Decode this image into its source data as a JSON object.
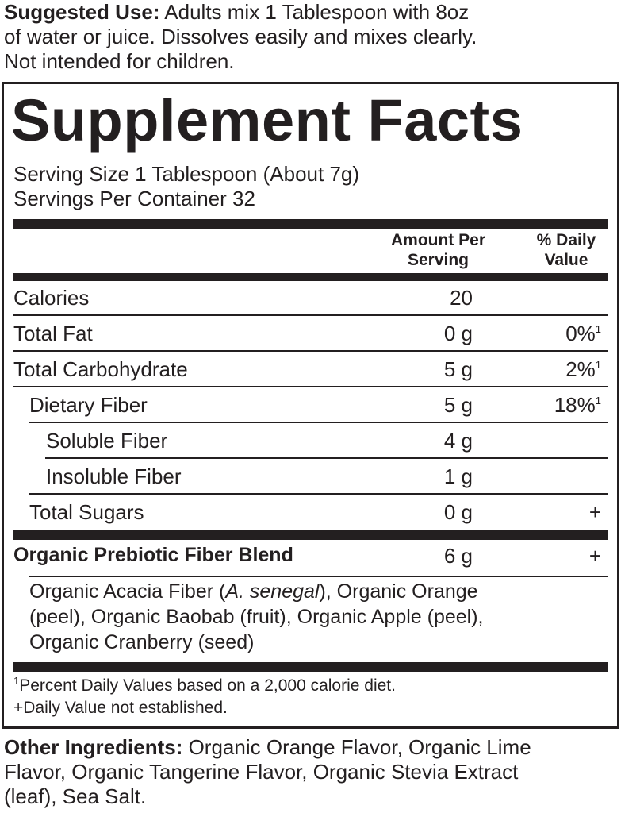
{
  "suggested_use": {
    "label": "Suggested Use:",
    "lines": [
      " Adults mix 1 Tablespoon with 8oz",
      "of water or juice. Dissolves easily and mixes clearly.",
      "Not intended for children."
    ]
  },
  "facts": {
    "title": "Supplement Facts",
    "serving_size": "Serving Size 1 Tablespoon (About 7g)",
    "servings_per_container": "Servings Per Container 32",
    "header_amount": [
      "Amount Per",
      "Serving"
    ],
    "header_dv": [
      "% Daily",
      "Value"
    ],
    "rows": [
      {
        "label": "Calories",
        "amount": "20",
        "dv": "",
        "note": ""
      },
      {
        "label": "Total Fat",
        "amount": "0 g",
        "dv": "0%",
        "note": "1"
      },
      {
        "label": "Total Carbohydrate",
        "amount": "5 g",
        "dv": "2%",
        "note": "1"
      },
      {
        "label": "Dietary Fiber",
        "amount": "5 g",
        "dv": "18%",
        "note": "1"
      },
      {
        "label": "Soluble Fiber",
        "amount": "4 g",
        "dv": "",
        "note": ""
      },
      {
        "label": "Insoluble Fiber",
        "amount": "1 g",
        "dv": "",
        "note": ""
      },
      {
        "label": "Total Sugars",
        "amount": "0 g",
        "dv": "+",
        "note": ""
      }
    ],
    "blend": {
      "label": "Organic Prebiotic Fiber Blend",
      "amount": "6 g",
      "dv": "+"
    },
    "blend_ingredients": {
      "l1a": "Organic Acacia Fiber (",
      "l1i": "A. senegal",
      "l1b": "), Organic Orange",
      "l2": "(peel), Organic Baobab (fruit), Organic Apple (peel),",
      "l3": "Organic Cranberry (seed)"
    },
    "footnote_mark": "1",
    "footnote1": "Percent Daily Values based on a 2,000 calorie diet.",
    "footnote2": "+Daily Value not established."
  },
  "other_ingredients": {
    "label": "Other Ingredients:",
    "lines": [
      " Organic Orange Flavor, Organic Lime",
      "Flavor, Organic Tangerine Flavor, Organic Stevia Extract",
      "(leaf), Sea Salt."
    ]
  }
}
